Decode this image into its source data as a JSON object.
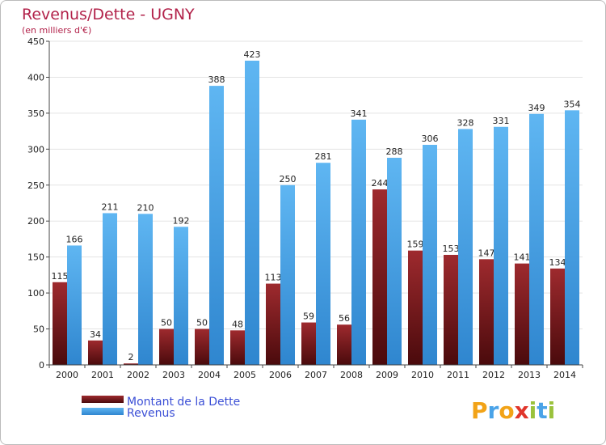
{
  "chart_data": {
    "type": "bar",
    "title": "Revenus/Dette - UGNY",
    "subtitle": "(en milliers d'€)",
    "categories": [
      "2000",
      "2001",
      "2002",
      "2003",
      "2004",
      "2005",
      "2006",
      "2007",
      "2008",
      "2009",
      "2010",
      "2011",
      "2012",
      "2013",
      "2014"
    ],
    "series": [
      {
        "name": "Montant de la Dette",
        "values": [
          115,
          34,
          2,
          50,
          50,
          48,
          113,
          59,
          56,
          244,
          159,
          153,
          147,
          141,
          134
        ],
        "color": "#7a1a1e"
      },
      {
        "name": "Revenus",
        "values": [
          166,
          211,
          210,
          192,
          388,
          423,
          250,
          281,
          341,
          288,
          306,
          328,
          331,
          349,
          354
        ],
        "color": "#4aa3e8"
      }
    ],
    "ylim": [
      0,
      450
    ],
    "yticks": [
      0,
      50,
      100,
      150,
      200,
      250,
      300,
      350,
      400,
      450
    ],
    "grid": true,
    "legend_position": "bottom-left"
  },
  "brand": {
    "logo_text": "Proxiti"
  }
}
